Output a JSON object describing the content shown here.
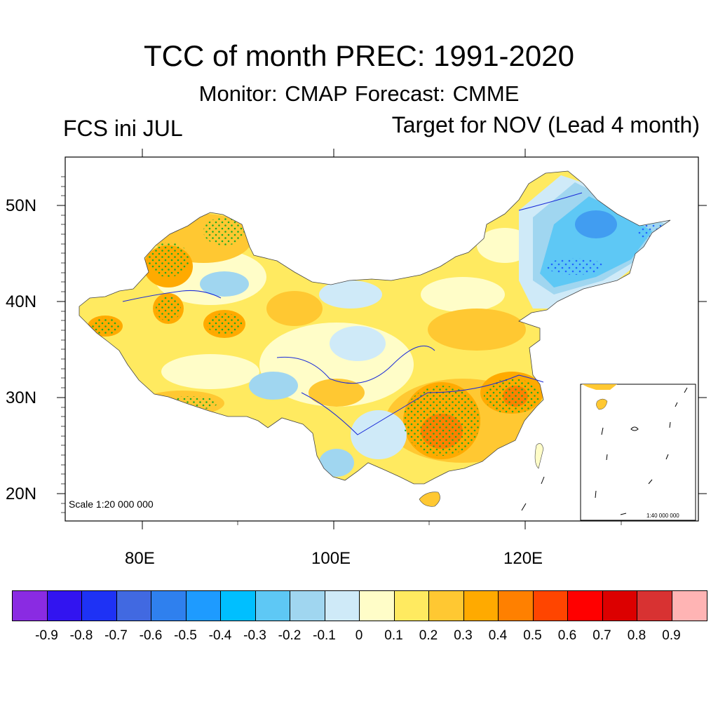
{
  "title": "TCC of month PREC: 1991-2020",
  "subtitle": "Monitor: CMAP   Forecast: CMME",
  "left_label": "FCS ini JUL",
  "right_label": "Target for NOV (Lead 4 month)",
  "map": {
    "lat_labels": [
      "50N",
      "40N",
      "30N",
      "20N"
    ],
    "lon_labels": [
      "80E",
      "100E",
      "120E"
    ],
    "scale_text": "Scale 1:20 000 000",
    "inset_scale_text": "1:40 000 000"
  },
  "colorbar": {
    "colors": [
      "#8a2be2",
      "#3214f0",
      "#1e32f5",
      "#4169e1",
      "#2f80ee",
      "#1e9bff",
      "#00bfff",
      "#5ec8f5",
      "#a0d6f0",
      "#cfeaf8",
      "#fffdc8",
      "#ffea60",
      "#ffc832",
      "#ffaa00",
      "#ff8000",
      "#ff4500",
      "#ff0000",
      "#dc0000",
      "#d83232",
      "#ffb4b4"
    ],
    "tick_labels": [
      "-0.9",
      "-0.8",
      "-0.7",
      "-0.6",
      "-0.5",
      "-0.4",
      "-0.3",
      "-0.2",
      "-0.1",
      "0",
      "0.1",
      "0.2",
      "0.3",
      "0.4",
      "0.5",
      "0.6",
      "0.7",
      "0.8",
      "0.9"
    ]
  }
}
